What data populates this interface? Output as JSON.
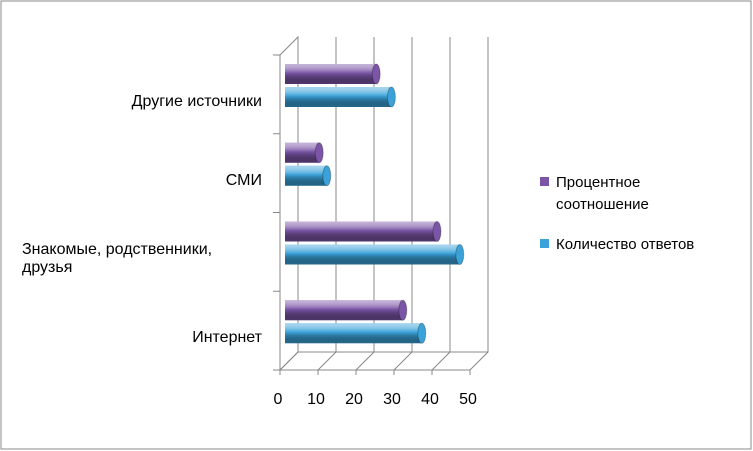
{
  "chart_data": {
    "type": "bar",
    "orientation": "horizontal",
    "categories": [
      "Интернет",
      "Знакомые, родственники, друзья",
      "СМИ",
      "Другие источники"
    ],
    "series": [
      {
        "name": "Процентное соотношение",
        "color": "#7b55a6",
        "values": [
          31,
          40,
          9,
          24
        ]
      },
      {
        "name": "Количество ответов",
        "color": "#3aa2d8",
        "values": [
          36,
          46,
          11,
          28
        ]
      }
    ],
    "xlim": [
      0,
      50
    ],
    "xticks": [
      0,
      10,
      20,
      30,
      40,
      50
    ],
    "grid": true,
    "legend": "right"
  }
}
